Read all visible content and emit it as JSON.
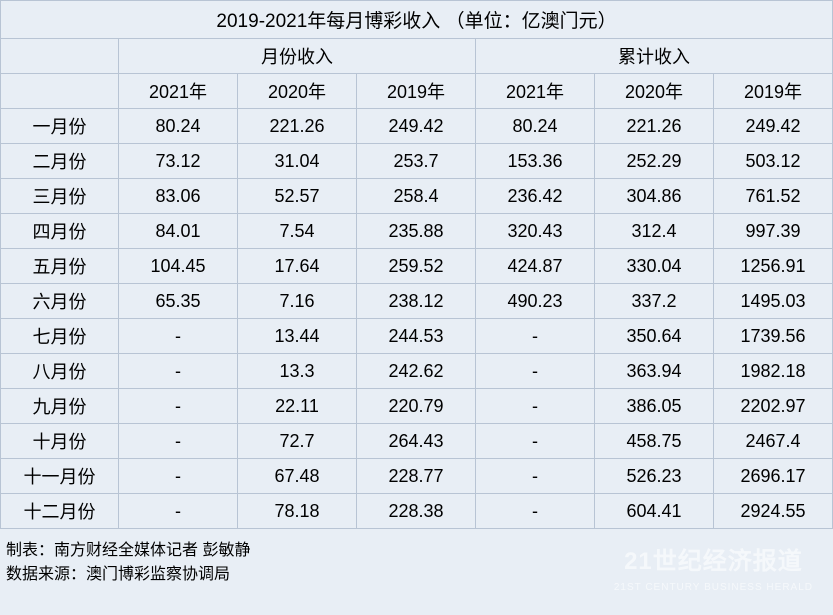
{
  "table": {
    "title": "2019-2021年每月博彩收入 （单位：亿澳门元）",
    "header_group1": "月份收入",
    "header_group2": "累计收入",
    "year_headers": [
      "2021年",
      "2020年",
      "2019年",
      "2021年",
      "2020年",
      "2019年"
    ],
    "months": [
      "一月份",
      "二月份",
      "三月份",
      "四月份",
      "五月份",
      "六月份",
      "七月份",
      "八月份",
      "九月份",
      "十月份",
      "十一月份",
      "十二月份"
    ],
    "rows": [
      [
        "80.24",
        "221.26",
        "249.42",
        "80.24",
        "221.26",
        "249.42"
      ],
      [
        "73.12",
        "31.04",
        "253.7",
        "153.36",
        "252.29",
        "503.12"
      ],
      [
        "83.06",
        "52.57",
        "258.4",
        "236.42",
        "304.86",
        "761.52"
      ],
      [
        "84.01",
        "7.54",
        "235.88",
        "320.43",
        "312.4",
        "997.39"
      ],
      [
        "104.45",
        "17.64",
        "259.52",
        "424.87",
        "330.04",
        "1256.91"
      ],
      [
        "65.35",
        "7.16",
        "238.12",
        "490.23",
        "337.2",
        "1495.03"
      ],
      [
        "-",
        "13.44",
        "244.53",
        "-",
        "350.64",
        "1739.56"
      ],
      [
        "-",
        "13.3",
        "242.62",
        "-",
        "363.94",
        "1982.18"
      ],
      [
        "-",
        "22.11",
        "220.79",
        "-",
        "386.05",
        "2202.97"
      ],
      [
        "-",
        "72.7",
        "264.43",
        "-",
        "458.75",
        "2467.4"
      ],
      [
        "-",
        "67.48",
        "228.77",
        "-",
        "526.23",
        "2696.17"
      ],
      [
        "-",
        "78.18",
        "228.38",
        "-",
        "604.41",
        "2924.55"
      ]
    ],
    "footer_line1": "制表：南方财经全媒体记者 彭敏静",
    "footer_line2": "数据来源：澳门博彩监察协调局",
    "watermark_main": "21世纪经济报道",
    "watermark_sub": "21ST CENTURY BUSINESS HERALD",
    "background_color": "#e8eef5",
    "border_color": "#b8c4d4",
    "text_color": "#000000",
    "font_size": 18,
    "title_font_size": 19
  }
}
